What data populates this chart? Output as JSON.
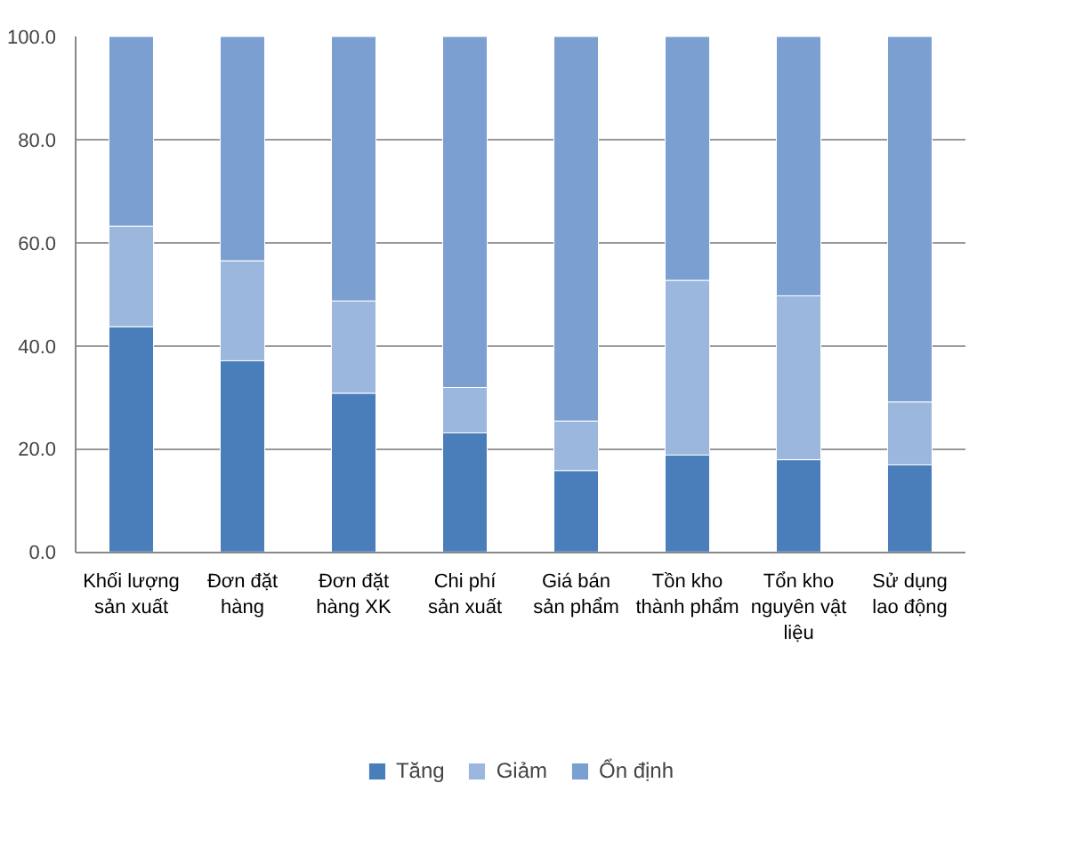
{
  "chart_data": {
    "type": "bar",
    "stacked": true,
    "categories": [
      "Khối lượng sản xuất",
      "Đơn đặt hàng",
      "Đơn đặt hàng XK",
      "Chi phí sản xuất",
      "Giá bán sản phẩm",
      "Tồn kho thành phẩm",
      "Tổn kho nguyên vật liệu",
      "Sử dụng lao động"
    ],
    "series": [
      {
        "name": "Tăng",
        "color": "#4a7ebb",
        "values": [
          43.7,
          37.1,
          30.8,
          23.1,
          15.8,
          18.8,
          17.9,
          16.9
        ]
      },
      {
        "name": "Giảm",
        "color": "#9bb7dd",
        "values": [
          19.5,
          19.4,
          17.9,
          8.8,
          9.6,
          33.9,
          31.8,
          12.2
        ]
      },
      {
        "name": "Ổn định",
        "color": "#7a9fd0",
        "values": [
          36.8,
          43.5,
          51.3,
          68.1,
          74.6,
          47.3,
          50.3,
          70.9
        ]
      }
    ],
    "ylim": [
      0,
      100
    ],
    "yticks": [
      {
        "value": 0,
        "label": "0.0"
      },
      {
        "value": 20,
        "label": "20.0"
      },
      {
        "value": 40,
        "label": "40.0"
      },
      {
        "value": 60,
        "label": "60.0"
      },
      {
        "value": 80,
        "label": "80.0"
      },
      {
        "value": 100,
        "label": "100.0"
      }
    ],
    "grid": "y",
    "legend": "bottom"
  }
}
